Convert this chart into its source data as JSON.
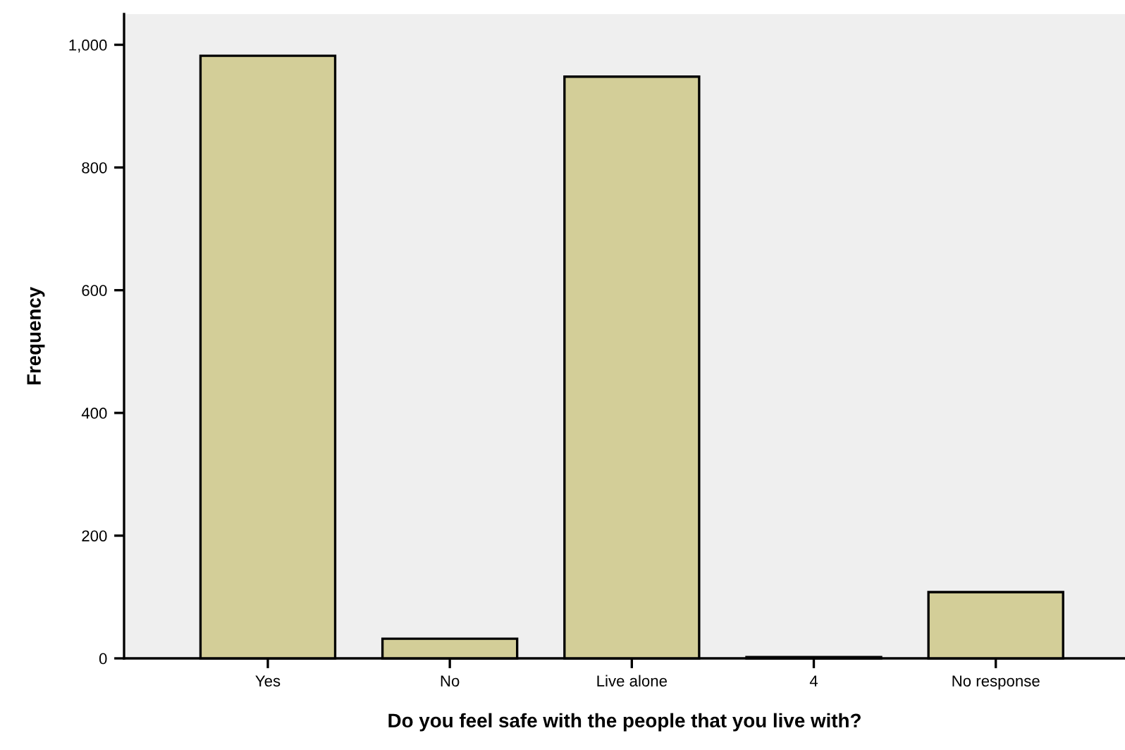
{
  "chart_data": {
    "type": "bar",
    "xlabel": "Do you feel safe with the people that you live with?",
    "ylabel": "Frequency",
    "categories": [
      "Yes",
      "No",
      "Live alone",
      "4",
      "No response"
    ],
    "values": [
      982,
      32,
      948,
      2,
      108
    ],
    "color": "#d3ce98",
    "ylim": [
      0,
      1050
    ],
    "yticks": [
      0,
      200,
      400,
      600,
      800,
      {
        "value": 1000,
        "label": "1,000"
      }
    ],
    "grid": false
  }
}
